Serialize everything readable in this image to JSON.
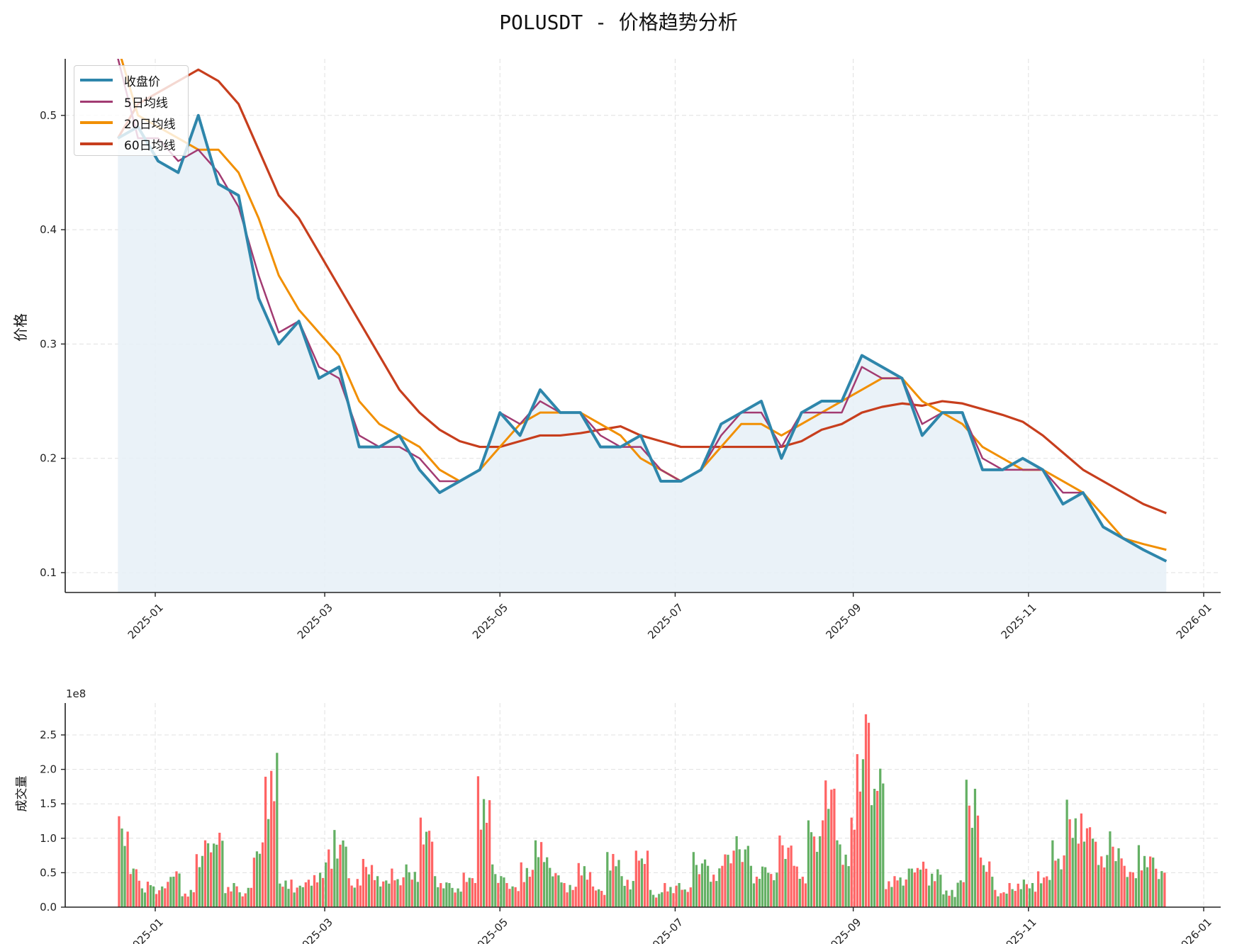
{
  "title": "POLUSDT - 价格趋势分析",
  "colors": {
    "close": "#2e86ab",
    "ma5": "#a23b72",
    "ma20": "#f18f01",
    "ma60": "#c73e1d",
    "fill": "#e6f0f7",
    "vol_up": "#ff6464",
    "vol_down": "#64b064",
    "grid": "#e0e0e0"
  },
  "legend": [
    {
      "label": "收盘价",
      "color": "#2e86ab",
      "width": 4
    },
    {
      "label": "5日均线",
      "color": "#a23b72",
      "width": 3
    },
    {
      "label": "20日均线",
      "color": "#f18f01",
      "width": 4
    },
    {
      "label": "60日均线",
      "color": "#c73e1d",
      "width": 4
    }
  ],
  "chart_data": [
    {
      "type": "line",
      "title": "POLUSDT - 价格趋势分析",
      "xlabel": "",
      "ylabel": "价格",
      "ylim": [
        0.083,
        0.55
      ],
      "yticks": [
        0.1,
        0.2,
        0.3,
        0.4,
        0.5
      ],
      "ytick_labels": [
        "0.1",
        "0.2",
        "0.3",
        "0.4",
        "0.5"
      ],
      "xticks": [
        "2025-01",
        "2025-03",
        "2025-05",
        "2025-07",
        "2025-09",
        "2025-11",
        "2026-01"
      ],
      "grid": true,
      "legend_position": "upper left",
      "x": [
        "2024-12-19",
        "2024-12-26",
        "2025-01-02",
        "2025-01-09",
        "2025-01-16",
        "2025-01-23",
        "2025-01-30",
        "2025-02-06",
        "2025-02-13",
        "2025-02-20",
        "2025-02-27",
        "2025-03-06",
        "2025-03-13",
        "2025-03-20",
        "2025-03-27",
        "2025-04-03",
        "2025-04-10",
        "2025-04-17",
        "2025-04-24",
        "2025-05-01",
        "2025-05-08",
        "2025-05-15",
        "2025-05-22",
        "2025-05-29",
        "2025-06-05",
        "2025-06-12",
        "2025-06-19",
        "2025-06-26",
        "2025-07-03",
        "2025-07-10",
        "2025-07-17",
        "2025-07-24",
        "2025-07-31",
        "2025-08-07",
        "2025-08-14",
        "2025-08-21",
        "2025-08-28",
        "2025-09-04",
        "2025-09-11",
        "2025-09-18",
        "2025-09-25",
        "2025-10-02",
        "2025-10-09",
        "2025-10-16",
        "2025-10-23",
        "2025-10-30",
        "2025-11-06",
        "2025-11-13",
        "2025-11-20",
        "2025-11-27",
        "2025-12-04",
        "2025-12-11",
        "2025-12-19"
      ],
      "series": [
        {
          "name": "收盘价",
          "values": [
            0.48,
            0.49,
            0.46,
            0.45,
            0.5,
            0.44,
            0.43,
            0.34,
            0.3,
            0.32,
            0.27,
            0.28,
            0.21,
            0.21,
            0.22,
            0.19,
            0.17,
            0.18,
            0.19,
            0.24,
            0.22,
            0.26,
            0.24,
            0.24,
            0.21,
            0.21,
            0.22,
            0.18,
            0.18,
            0.19,
            0.23,
            0.24,
            0.25,
            0.2,
            0.24,
            0.25,
            0.25,
            0.29,
            0.28,
            0.27,
            0.22,
            0.24,
            0.24,
            0.19,
            0.19,
            0.2,
            0.19,
            0.16,
            0.17,
            0.14,
            0.13,
            0.12,
            0.11
          ]
        },
        {
          "name": "5日均线",
          "values": [
            0.55,
            0.48,
            0.48,
            0.46,
            0.47,
            0.45,
            0.42,
            0.36,
            0.31,
            0.32,
            0.28,
            0.27,
            0.22,
            0.21,
            0.21,
            0.2,
            0.18,
            0.18,
            0.19,
            0.24,
            0.23,
            0.25,
            0.24,
            0.24,
            0.22,
            0.21,
            0.21,
            0.19,
            0.18,
            0.19,
            0.22,
            0.24,
            0.24,
            0.21,
            0.24,
            0.24,
            0.24,
            0.28,
            0.27,
            0.27,
            0.23,
            0.24,
            0.24,
            0.2,
            0.19,
            0.19,
            0.19,
            0.17,
            0.17,
            0.14,
            0.13,
            0.12,
            0.11
          ]
        },
        {
          "name": "20日均线",
          "values": [
            0.56,
            0.5,
            0.49,
            0.48,
            0.47,
            0.47,
            0.45,
            0.41,
            0.36,
            0.33,
            0.31,
            0.29,
            0.25,
            0.23,
            0.22,
            0.21,
            0.19,
            0.18,
            0.19,
            0.21,
            0.23,
            0.24,
            0.24,
            0.24,
            0.23,
            0.22,
            0.2,
            0.19,
            0.18,
            0.19,
            0.21,
            0.23,
            0.23,
            0.22,
            0.23,
            0.24,
            0.25,
            0.26,
            0.27,
            0.27,
            0.25,
            0.24,
            0.23,
            0.21,
            0.2,
            0.19,
            0.19,
            0.18,
            0.17,
            0.15,
            0.13,
            0.125,
            0.12
          ]
        },
        {
          "name": "60日均线",
          "values": [
            0.48,
            0.51,
            0.52,
            0.53,
            0.54,
            0.53,
            0.51,
            0.47,
            0.43,
            0.41,
            0.38,
            0.35,
            0.32,
            0.29,
            0.26,
            0.24,
            0.225,
            0.215,
            0.21,
            0.21,
            0.215,
            0.22,
            0.22,
            0.222,
            0.225,
            0.228,
            0.22,
            0.215,
            0.21,
            0.21,
            0.21,
            0.21,
            0.21,
            0.21,
            0.215,
            0.225,
            0.23,
            0.24,
            0.245,
            0.248,
            0.246,
            0.25,
            0.248,
            0.243,
            0.238,
            0.232,
            0.22,
            0.205,
            0.19,
            0.18,
            0.17,
            0.16,
            0.152
          ]
        }
      ]
    },
    {
      "type": "bar",
      "title": "",
      "xlabel": "",
      "ylabel": "成交量",
      "offset_label": "1e8",
      "ylim": [
        0,
        2.95
      ],
      "yticks": [
        0.0,
        0.5,
        1.0,
        1.5,
        2.0,
        2.5
      ],
      "ytick_labels": [
        "0.0",
        "0.5",
        "1.0",
        "1.5",
        "2.0",
        "2.5"
      ],
      "xticks": [
        "2025-01",
        "2025-03",
        "2025-05",
        "2025-07",
        "2025-09",
        "2025-11",
        "2026-01"
      ],
      "grid": true,
      "unit": "1e8",
      "x": [
        "2024-12-19",
        "2024-12-23",
        "2024-12-27",
        "2025-01-01",
        "2025-01-05",
        "2025-01-10",
        "2025-01-15",
        "2025-01-20",
        "2025-01-25",
        "2025-01-30",
        "2025-02-04",
        "2025-02-08",
        "2025-02-13",
        "2025-02-18",
        "2025-02-23",
        "2025-02-28",
        "2025-03-04",
        "2025-03-09",
        "2025-03-14",
        "2025-03-19",
        "2025-03-24",
        "2025-03-29",
        "2025-04-03",
        "2025-04-08",
        "2025-04-13",
        "2025-04-18",
        "2025-04-23",
        "2025-04-28",
        "2025-05-03",
        "2025-05-08",
        "2025-05-13",
        "2025-05-18",
        "2025-05-23",
        "2025-05-28",
        "2025-06-02",
        "2025-06-07",
        "2025-06-12",
        "2025-06-17",
        "2025-06-22",
        "2025-06-27",
        "2025-07-02",
        "2025-07-07",
        "2025-07-12",
        "2025-07-17",
        "2025-07-22",
        "2025-07-27",
        "2025-08-01",
        "2025-08-06",
        "2025-08-11",
        "2025-08-16",
        "2025-08-21",
        "2025-08-26",
        "2025-08-31",
        "2025-09-02",
        "2025-09-07",
        "2025-09-12",
        "2025-09-17",
        "2025-09-22",
        "2025-09-27",
        "2025-10-02",
        "2025-10-07",
        "2025-10-10",
        "2025-10-15",
        "2025-10-20",
        "2025-10-25",
        "2025-10-30",
        "2025-11-04",
        "2025-11-09",
        "2025-11-14",
        "2025-11-19",
        "2025-11-24",
        "2025-11-29",
        "2025-12-04",
        "2025-12-09",
        "2025-12-14",
        "2025-12-19"
      ],
      "series": [
        {
          "name": "成交量",
          "values": [
            1.32,
            0.56,
            0.37,
            0.3,
            0.52,
            0.25,
            0.97,
            1.08,
            0.35,
            0.28,
            0.94,
            2.24,
            0.4,
            0.36,
            0.5,
            0.91,
            1.12,
            0.42,
            0.7,
            0.45,
            0.56,
            0.62,
            1.3,
            0.45,
            0.35,
            0.5,
            1.9,
            0.62,
            0.35,
            0.65,
            0.97,
            0.57,
            0.35,
            0.64,
            0.3,
            0.8,
            0.45,
            0.82,
            0.25,
            0.35,
            0.3,
            0.8,
            0.6,
            0.9,
            1.03,
            0.6,
            0.58,
            1.04,
            0.6,
            1.26,
            2.02,
            0.97,
            1.3,
            2.8,
            2.01,
            0.45,
            0.56,
            0.66,
            0.55,
            0.25,
            0.45,
            1.85,
            0.72,
            0.25,
            0.35,
            0.4,
            0.52,
            0.97,
            1.56,
            1.36,
            0.95,
            1.1,
            0.6,
            0.9,
            0.72,
            1.27
          ]
        },
        {
          "name": "direction",
          "values": [
            "down",
            "up",
            "down",
            "up",
            "down",
            "up",
            "down",
            "down",
            "up",
            "up",
            "down",
            "up",
            "down",
            "down",
            "up",
            "up",
            "down",
            "up",
            "up",
            "down",
            "up",
            "down",
            "up",
            "down",
            "down",
            "up",
            "up",
            "down",
            "up",
            "up",
            "down",
            "down",
            "up",
            "up",
            "up",
            "down",
            "down",
            "up",
            "down",
            "up",
            "up",
            "down",
            "down",
            "up",
            "down",
            "down",
            "down",
            "up",
            "up",
            "down",
            "up",
            "down",
            "up",
            "up",
            "down",
            "up",
            "down",
            "up",
            "down",
            "down",
            "down",
            "down",
            "up",
            "up",
            "up",
            "down",
            "up",
            "down",
            "down",
            "up",
            "up",
            "down",
            "up",
            "down",
            "down",
            "down"
          ]
        }
      ]
    }
  ]
}
